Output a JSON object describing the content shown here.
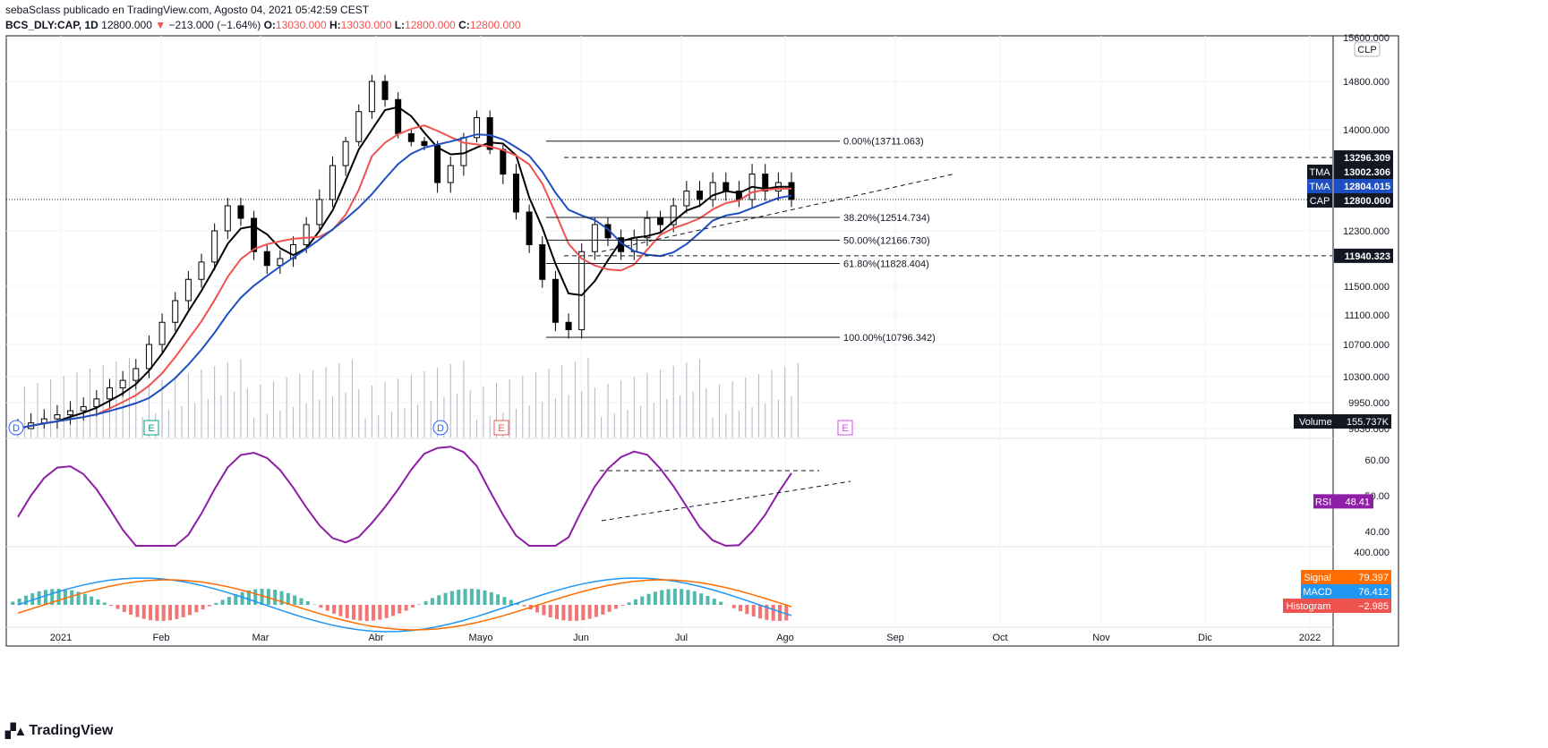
{
  "header": {
    "publisher_line": "sebaSclass publicado en TradingView.com, Agosto 04, 2021 05:42:59 CEST",
    "symbol": "BCS_DLY:CAP, 1D",
    "last": "12800.000",
    "change_arrow": "▼",
    "change": "−213.000 (−1.64%)",
    "o_label": "O:",
    "o_value": "13030.000",
    "h_label": "H:",
    "h_value": "13030.000",
    "l_label": "L:",
    "l_value": "12800.000",
    "c_label": "C:",
    "c_value": "12800.000"
  },
  "branding": {
    "logo_text": "TradingView"
  },
  "colors": {
    "up": "#000000",
    "down": "#000000",
    "red": "#ef5350",
    "blue": "#1e4fc2",
    "rsi": "#8e1ea6",
    "macd": "#2196f3",
    "signal": "#ff6d00",
    "hist_up": "#26a69a",
    "hist_down": "#ef5350"
  },
  "chart_data": {
    "type": "candlestick",
    "currency_badge": "CLP",
    "x_ticks": [
      "2021",
      "Feb",
      "Mar",
      "Abr",
      "Mayo",
      "Jun",
      "Jul",
      "Ago",
      "Sep",
      "Oct",
      "Nov",
      "Dic",
      "2022"
    ],
    "y_ticks": [
      "15600.000",
      "14800.000",
      "14000.000",
      "13296.309",
      "12300.000",
      "11500.000",
      "11100.000",
      "10700.000",
      "10300.000",
      "9950.000",
      "9630.000"
    ],
    "ohlc_close_sample": [
      9630,
      9700,
      9750,
      9800,
      9850,
      9900,
      10000,
      10150,
      10250,
      10400,
      10700,
      11000,
      11300,
      11600,
      11850,
      12300,
      12700,
      12500,
      12000,
      11800,
      11900,
      12100,
      12400,
      12800,
      13200,
      13700,
      14300,
      14800,
      14500,
      13900,
      13700,
      13600,
      13000,
      13200,
      13800,
      14200,
      13500,
      13100,
      12600,
      12100,
      11600,
      11000,
      10900,
      12000,
      12400,
      12200,
      12000,
      12200,
      12500,
      12400,
      12700,
      12900,
      12800,
      13000,
      12900,
      12800,
      13100,
      12900,
      13000,
      12800
    ],
    "fibonacci": [
      {
        "label": "0.00%(13711.063)",
        "value": 13711.063
      },
      {
        "label": "38.20%(12514.734)",
        "value": 12514.734
      },
      {
        "label": "50.00%(12166.730)",
        "value": 12166.73
      },
      {
        "label": "61.80%(11828.404)",
        "value": 11828.404
      },
      {
        "label": "100.00%(10796.342)",
        "value": 10796.342
      }
    ],
    "levels": [
      {
        "label": "13296.309",
        "value": 13296.309
      },
      {
        "label": "11940.323",
        "value": 11940.323
      }
    ],
    "price_badges": [
      {
        "name": "TMA",
        "value": "13002.306",
        "color": "#131722"
      },
      {
        "name": "TMA",
        "value": "12804.015",
        "color": "#1e4fc2"
      },
      {
        "name": "CAP",
        "value": "12800.000",
        "color": "#131722"
      }
    ],
    "volume": {
      "name": "Volume",
      "value": "155.737K"
    },
    "events": [
      {
        "label": "D",
        "color": "#2962ff"
      },
      {
        "label": "E",
        "color": "#089981"
      },
      {
        "label": "D",
        "color": "#2962ff"
      },
      {
        "label": "E",
        "color": "#ef5350"
      },
      {
        "label": "E",
        "color": "#e040fb"
      }
    ],
    "rsi": {
      "name": "RSI",
      "value": "48.41",
      "ticks": [
        "60.00",
        "50.00",
        "40.00"
      ]
    },
    "macd": {
      "ticks": [
        "400.000"
      ],
      "signal": {
        "name": "Signal",
        "value": "79.397"
      },
      "macd": {
        "name": "MACD",
        "value": "76.412"
      },
      "histogram": {
        "name": "Histogram",
        "value": "−2.985"
      }
    }
  }
}
